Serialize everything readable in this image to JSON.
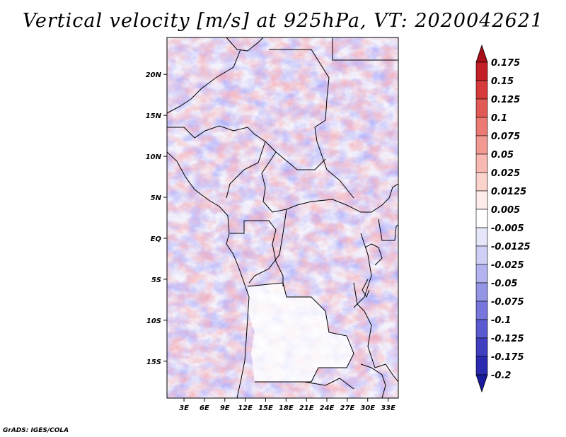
{
  "title": "Vertical velocity [m/s] at 925hPa, VT: 2020042621",
  "credit": "GrADS: IGES/COLA",
  "lat_ticks": [
    "20N",
    "15N",
    "10N",
    "5N",
    "EQ",
    "5S",
    "10S",
    "15S"
  ],
  "lon_ticks": [
    "3E",
    "6E",
    "9E",
    "12E",
    "15E",
    "18E",
    "21E",
    "24E",
    "27E",
    "30E",
    "33E"
  ],
  "map_extent": {
    "lon": [
      0.5,
      34.5
    ],
    "lat": [
      -19.5,
      24.5
    ]
  },
  "colorbar": {
    "labels": [
      "0.175",
      "0.15",
      "0.125",
      "0.1",
      "0.075",
      "0.05",
      "0.025",
      "0.0125",
      "0.005",
      "-0.005",
      "-0.0125",
      "-0.025",
      "-0.05",
      "-0.075",
      "-0.1",
      "-0.125",
      "-0.175",
      "-0.2"
    ],
    "colors": [
      "#a80d18",
      "#c21f26",
      "#d63a3a",
      "#e25a55",
      "#ec7a73",
      "#f29a92",
      "#f7b9b1",
      "#fad3cd",
      "#fdecea",
      "#ffffff",
      "#e6e6fa",
      "#cfcff5",
      "#b3b3ef",
      "#9595e6",
      "#7676dc",
      "#5a5ad0",
      "#3f3fc0",
      "#2a2ab0",
      "#1a1a9c"
    ]
  }
}
